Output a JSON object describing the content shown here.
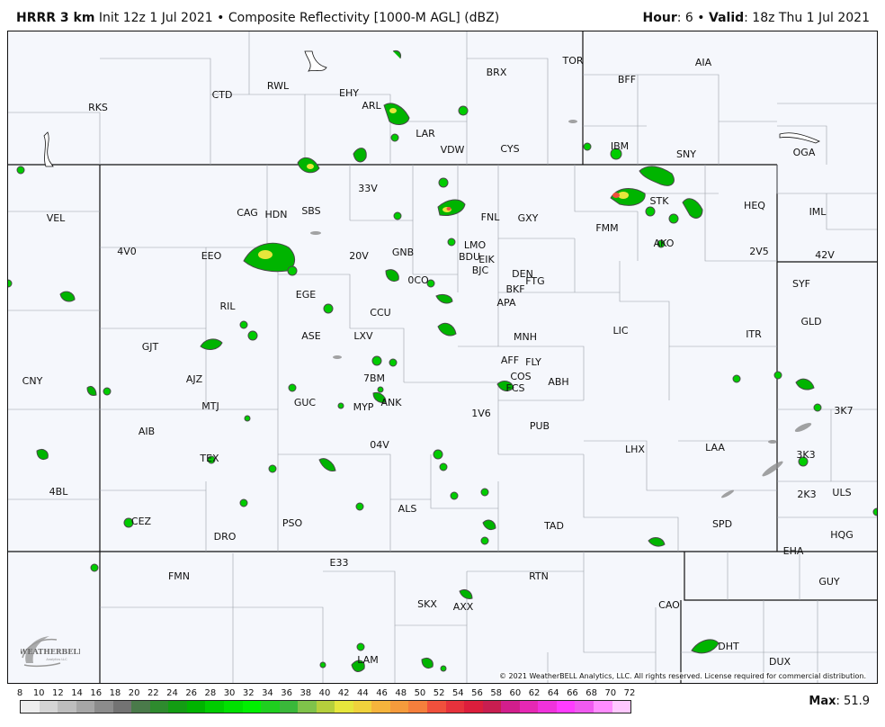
{
  "header": {
    "model": "HRRR 3 km",
    "init": "Init 12z 1 Jul 2021",
    "separator": "•",
    "field": "Composite Reflectivity [1000-M AGL] (dBZ)",
    "hour_label": "Hour",
    "hour_value": ": 6",
    "valid_label": "Valid",
    "valid_value": ": 18z Thu 1 Jul 2021"
  },
  "stations": [
    {
      "id": "RKS"
    },
    {
      "id": "CTD"
    },
    {
      "id": "RWL"
    },
    {
      "id": "EHY"
    },
    {
      "id": "ARL"
    },
    {
      "id": "BRX"
    },
    {
      "id": "TOR"
    },
    {
      "id": "BFF"
    },
    {
      "id": "AIA"
    },
    {
      "id": "LAR"
    },
    {
      "id": "VDW"
    },
    {
      "id": "CYS"
    },
    {
      "id": "IBM"
    },
    {
      "id": "SNY"
    },
    {
      "id": "OGA"
    },
    {
      "id": "33V"
    },
    {
      "id": "VEL"
    },
    {
      "id": "CAG"
    },
    {
      "id": "HDN"
    },
    {
      "id": "SBS"
    },
    {
      "id": "FNL"
    },
    {
      "id": "GXY"
    },
    {
      "id": "STK"
    },
    {
      "id": "HEQ"
    },
    {
      "id": "IML"
    },
    {
      "id": "FMM"
    },
    {
      "id": "4V0"
    },
    {
      "id": "EEO"
    },
    {
      "id": "20V"
    },
    {
      "id": "GNB"
    },
    {
      "id": "LMO"
    },
    {
      "id": "BDU"
    },
    {
      "id": "EIK"
    },
    {
      "id": "BJC"
    },
    {
      "id": "AKO"
    },
    {
      "id": "2V5"
    },
    {
      "id": "42V"
    },
    {
      "id": "DEN"
    },
    {
      "id": "FTG"
    },
    {
      "id": "0CO"
    },
    {
      "id": "BKF"
    },
    {
      "id": "EGE"
    },
    {
      "id": "APA"
    },
    {
      "id": "RIL"
    },
    {
      "id": "CCU"
    },
    {
      "id": "SYF"
    },
    {
      "id": "GLD"
    },
    {
      "id": "ASE"
    },
    {
      "id": "LXV"
    },
    {
      "id": "MNH"
    },
    {
      "id": "LIC"
    },
    {
      "id": "ITR"
    },
    {
      "id": "GJT"
    },
    {
      "id": "AFF"
    },
    {
      "id": "FLY"
    },
    {
      "id": "COS"
    },
    {
      "id": "FCS"
    },
    {
      "id": "ABH"
    },
    {
      "id": "CNY"
    },
    {
      "id": "AJZ"
    },
    {
      "id": "7BM"
    },
    {
      "id": "MTJ"
    },
    {
      "id": "GUC"
    },
    {
      "id": "MYP"
    },
    {
      "id": "ANK"
    },
    {
      "id": "1V6"
    },
    {
      "id": "3K7"
    },
    {
      "id": "PUB"
    },
    {
      "id": "AIB"
    },
    {
      "id": "04V"
    },
    {
      "id": "LHX"
    },
    {
      "id": "LAA"
    },
    {
      "id": "TEX"
    },
    {
      "id": "3K3"
    },
    {
      "id": "4BL"
    },
    {
      "id": "ULS"
    },
    {
      "id": "2K3"
    },
    {
      "id": "ALS"
    },
    {
      "id": "CEZ"
    },
    {
      "id": "PSO"
    },
    {
      "id": "TAD"
    },
    {
      "id": "SPD"
    },
    {
      "id": "DRO"
    },
    {
      "id": "HQG"
    },
    {
      "id": "EHA"
    },
    {
      "id": "E33"
    },
    {
      "id": "FMN"
    },
    {
      "id": "RTN"
    },
    {
      "id": "GUY"
    },
    {
      "id": "SKX"
    },
    {
      "id": "AXX"
    },
    {
      "id": "CAO"
    },
    {
      "id": "DHT"
    },
    {
      "id": "LAM"
    },
    {
      "id": "DUX"
    }
  ],
  "copyright": "© 2021 WeatherBELL Analytics, LLC. All rights reserved. License required for commercial distribution.",
  "logo": {
    "text": "WEATHERBELL",
    "sub": "Analytics LLC"
  },
  "legend": {
    "labels": [
      "8",
      "10",
      "12",
      "14",
      "16",
      "18",
      "20",
      "22",
      "24",
      "26",
      "28",
      "30",
      "32",
      "34",
      "36",
      "38",
      "40",
      "42",
      "44",
      "46",
      "48",
      "50",
      "52",
      "54",
      "56",
      "58",
      "60",
      "62",
      "64",
      "66",
      "68",
      "70",
      "72"
    ],
    "colors": [
      "#ededed",
      "#d4d4d4",
      "#bdbdbd",
      "#a6a6a6",
      "#8c8c8c",
      "#737373",
      "#4a7a4a",
      "#2e8b2e",
      "#139d13",
      "#00b400",
      "#00cc00",
      "#00e000",
      "#00f000",
      "#1fcf1f",
      "#3ab83a",
      "#7fc24a",
      "#b5cf3c",
      "#e6e63c",
      "#f0d23c",
      "#f5b43c",
      "#f59b3c",
      "#f57f3c",
      "#f0503c",
      "#e6323c",
      "#dc1e3c",
      "#c81e50",
      "#d21e8c",
      "#e628b4",
      "#f032dc",
      "#ff3cff",
      "#f05af0",
      "#ff8cff",
      "#ffc8ff"
    ]
  },
  "max": {
    "label": "Max",
    "value": ": 51.9"
  }
}
